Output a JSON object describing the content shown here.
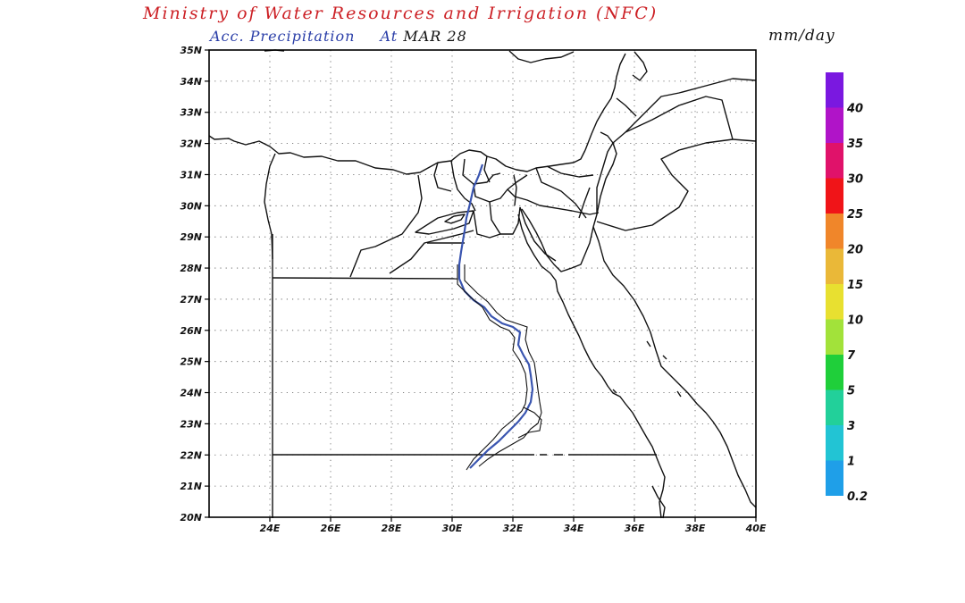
{
  "header": {
    "title": "Ministry of Water Resources and Irrigation (NFC)",
    "product": "Acc. Precipitation",
    "at_label": "At",
    "date": "MAR 28",
    "units": "mm/day"
  },
  "map": {
    "lon_range": [
      22,
      40
    ],
    "lat_range": [
      20,
      35
    ],
    "x_ticks": [
      "24E",
      "26E",
      "28E",
      "30E",
      "32E",
      "34E",
      "36E",
      "38E",
      "40E"
    ],
    "y_ticks": [
      "20N",
      "21N",
      "22N",
      "23N",
      "24N",
      "25N",
      "26N",
      "27N",
      "28N",
      "29N",
      "30N",
      "31N",
      "32N",
      "33N",
      "34N",
      "35N"
    ],
    "grid": "dotted",
    "precipitation": "none shown"
  },
  "legend": {
    "bins": [
      {
        "label": "0.2",
        "color": "#1f9fe8"
      },
      {
        "label": "1",
        "color": "#22c4d4"
      },
      {
        "label": "3",
        "color": "#22d09a"
      },
      {
        "label": "5",
        "color": "#1fcf3a"
      },
      {
        "label": "7",
        "color": "#a2e23a"
      },
      {
        "label": "10",
        "color": "#e8e030"
      },
      {
        "label": "15",
        "color": "#eab838"
      },
      {
        "label": "20",
        "color": "#f0862a"
      },
      {
        "label": "25",
        "color": "#f01418"
      },
      {
        "label": "30",
        "color": "#e0126a"
      },
      {
        "label": "35",
        "color": "#b014c8"
      },
      {
        "label": "40",
        "color": "#7a18e0"
      }
    ]
  }
}
